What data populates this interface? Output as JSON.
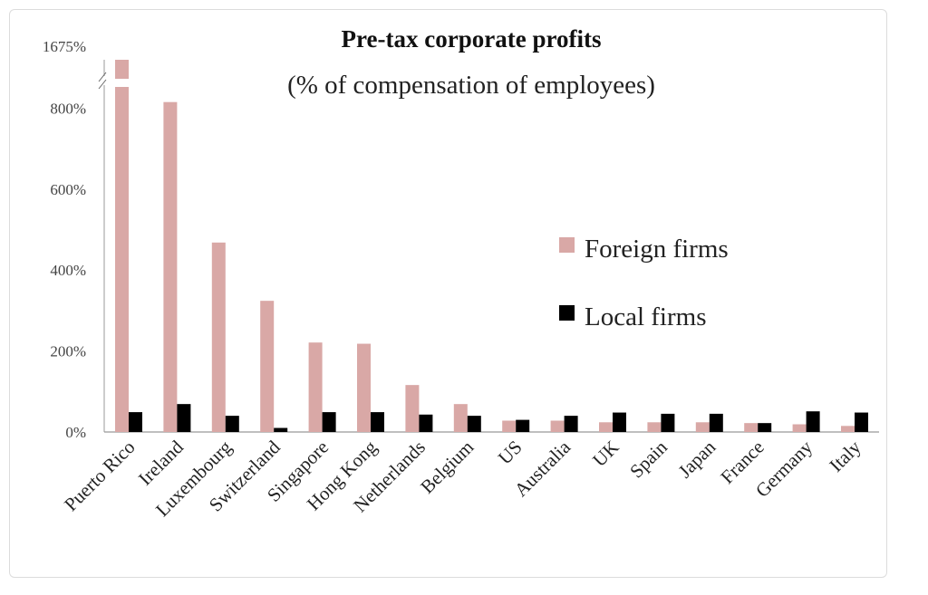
{
  "chart_data": {
    "type": "bar",
    "title": "Pre-tax corporate profits",
    "subtitle": "(% of compensation of employees)",
    "xlabel": "",
    "ylabel": "",
    "ylim": [
      0,
      1675
    ],
    "axis_break": {
      "below_label": "800%",
      "top_label": "1675%"
    },
    "y_ticks": [
      "0%",
      "200%",
      "400%",
      "600%",
      "800%",
      "1675%"
    ],
    "grid": false,
    "legend_position": "right",
    "categories": [
      "Puerto Rico",
      "Ireland",
      "Luxembourg",
      "Switzerland",
      "Singapore",
      "Hong Kong",
      "Netherlands",
      "Belgium",
      "US",
      "Australia",
      "UK",
      "Spain",
      "Japan",
      "France",
      "Germany",
      "Italy"
    ],
    "series": [
      {
        "name": "Foreign firms",
        "color": "#d9a8a6",
        "values": [
          1675,
          815,
          468,
          324,
          221,
          218,
          116,
          69,
          28,
          28,
          24,
          24,
          24,
          22,
          19,
          15
        ]
      },
      {
        "name": "Local firms",
        "color": "#000000",
        "values": [
          49,
          69,
          40,
          10,
          49,
          49,
          43,
          40,
          30,
          40,
          48,
          45,
          45,
          22,
          51,
          48
        ]
      }
    ]
  }
}
